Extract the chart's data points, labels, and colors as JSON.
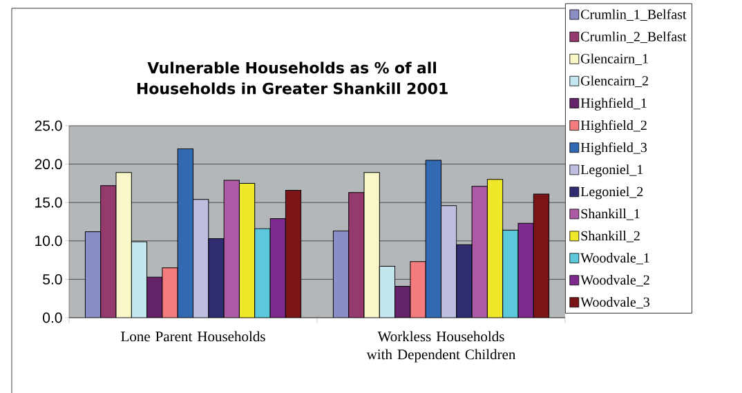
{
  "chart_data": {
    "type": "bar",
    "title": "Vulnerable Households as % of all Households in Greater Shankill 2001",
    "categories": [
      "Lone Parent Households",
      "Workless Households with Dependent Children"
    ],
    "ylim": [
      0,
      25
    ],
    "yticks": [
      {
        "value": 0,
        "label": "0.0"
      },
      {
        "value": 5,
        "label": "5.0"
      },
      {
        "value": 10,
        "label": "10.0"
      },
      {
        "value": 15,
        "label": "15.0"
      },
      {
        "value": 20,
        "label": "20.0"
      },
      {
        "value": 25,
        "label": "25.0"
      }
    ],
    "grid": "y",
    "legend": "right",
    "series": [
      {
        "name": "Crumlin_1_Belfast",
        "color": "#8b8dc6",
        "values": [
          11.2,
          11.3
        ]
      },
      {
        "name": "Crumlin_2_Belfast",
        "color": "#953a6c",
        "values": [
          17.2,
          16.3
        ]
      },
      {
        "name": "Glencairn_1",
        "color": "#f9f7c8",
        "values": [
          18.9,
          18.9
        ]
      },
      {
        "name": "Glencairn_2",
        "color": "#c3e6ef",
        "values": [
          9.9,
          6.7
        ]
      },
      {
        "name": "Highfield_1",
        "color": "#642369",
        "values": [
          5.3,
          4.1
        ]
      },
      {
        "name": "Highfield_2",
        "color": "#f47c7e",
        "values": [
          6.5,
          7.3
        ]
      },
      {
        "name": "Highfield_3",
        "color": "#3169b3",
        "values": [
          22.0,
          20.5
        ]
      },
      {
        "name": "Legoniel_1",
        "color": "#bebfe0",
        "values": [
          15.4,
          14.6
        ]
      },
      {
        "name": "Legoniel_2",
        "color": "#2f2c72",
        "values": [
          10.3,
          9.5
        ]
      },
      {
        "name": "Shankill_1",
        "color": "#ac5aa3",
        "values": [
          17.9,
          17.1
        ]
      },
      {
        "name": "Shankill_2",
        "color": "#efe72a",
        "values": [
          17.5,
          18.0
        ]
      },
      {
        "name": "Woodvale_1",
        "color": "#5dc8db",
        "values": [
          11.6,
          11.4
        ]
      },
      {
        "name": "Woodvale_2",
        "color": "#7e2a8c",
        "values": [
          12.9,
          12.3
        ]
      },
      {
        "name": "Woodvale_3",
        "color": "#7b1416",
        "values": [
          16.6,
          16.1
        ]
      }
    ]
  }
}
